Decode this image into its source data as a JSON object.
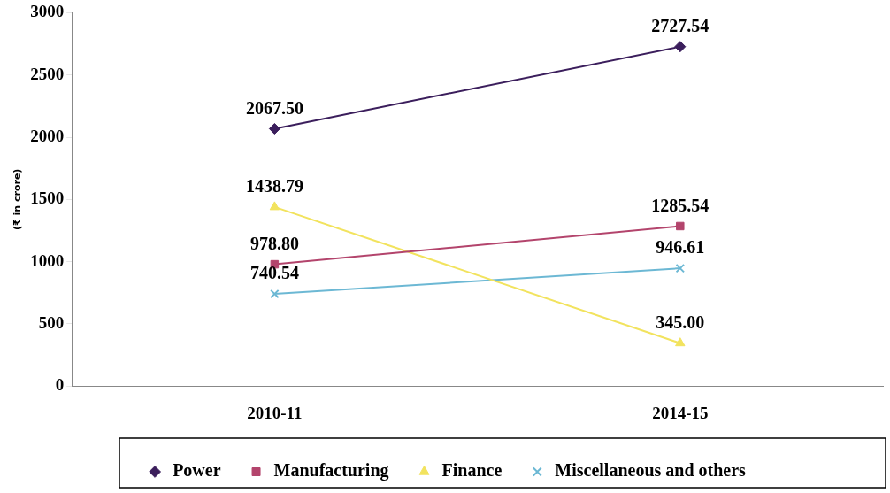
{
  "chart_data": {
    "type": "line",
    "ylabel": "(₹ in crore)",
    "categories": [
      "2010-11",
      "2014-15"
    ],
    "series": [
      {
        "name": "Power",
        "color": "#3b1e5c",
        "marker": "diamond",
        "values": [
          2067.5,
          2727.54
        ],
        "value_labels": [
          "2067.50",
          "2727.54"
        ]
      },
      {
        "name": "Manufacturing",
        "color": "#b3446c",
        "marker": "square",
        "values": [
          978.8,
          1285.54
        ],
        "value_labels": [
          "978.80",
          "1285.54"
        ]
      },
      {
        "name": "Finance",
        "color": "#f2e35e",
        "marker": "triangle",
        "values": [
          1438.79,
          345
        ],
        "value_labels": [
          "1438.79",
          "345.00"
        ]
      },
      {
        "name": "Miscellaneous and others",
        "color": "#6cb8d4",
        "marker": "cross",
        "values": [
          740.54,
          946.61
        ],
        "value_labels": [
          "740.54",
          "946.61"
        ]
      }
    ],
    "ylim": [
      0,
      3000
    ],
    "yticks": [
      0,
      500,
      1000,
      1500,
      2000,
      2500,
      3000
    ],
    "grid": false,
    "legend": "bottom",
    "line_style": "solid"
  }
}
